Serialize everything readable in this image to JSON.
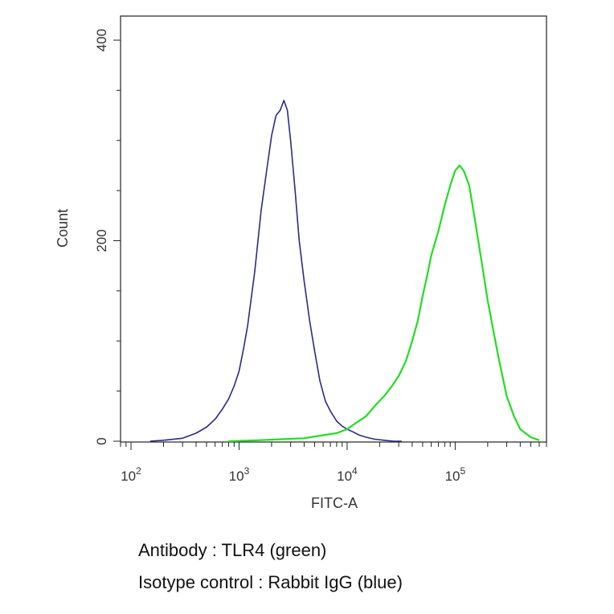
{
  "chart_data": {
    "type": "line",
    "xlabel": "FITC-A",
    "ylabel": "Count",
    "xscale": "log",
    "xlim": [
      80,
      700000
    ],
    "ylim": [
      0,
      400
    ],
    "x_ticks": [
      {
        "value": 100,
        "base": "10",
        "exp": "2"
      },
      {
        "value": 1000,
        "base": "10",
        "exp": "3"
      },
      {
        "value": 10000,
        "base": "10",
        "exp": "4"
      },
      {
        "value": 100000,
        "base": "10",
        "exp": "5"
      }
    ],
    "y_ticks": [
      {
        "value": 0,
        "label": "0"
      },
      {
        "value": 200,
        "label": "200"
      },
      {
        "value": 400,
        "label": "400"
      }
    ],
    "grid": false,
    "legend": "none",
    "series": [
      {
        "name": "Isotype control",
        "color": "#2a2a8a",
        "x": [
          150,
          200,
          300,
          400,
          500,
          600,
          700,
          800,
          900,
          1000,
          1100,
          1200,
          1400,
          1600,
          1800,
          2000,
          2200,
          2400,
          2600,
          2800,
          3000,
          3300,
          3600,
          4000,
          4500,
          5000,
          5600,
          6300,
          7000,
          8000,
          9000,
          10000,
          11500,
          13000,
          15000,
          18000,
          22000,
          27000,
          32000
        ],
        "y": [
          0,
          1,
          3,
          8,
          14,
          22,
          32,
          42,
          55,
          70,
          92,
          115,
          170,
          230,
          270,
          305,
          325,
          330,
          340,
          330,
          300,
          250,
          200,
          160,
          120,
          90,
          60,
          40,
          30,
          20,
          15,
          12,
          9,
          6,
          4,
          2,
          1,
          0,
          0
        ]
      },
      {
        "name": "TLR4",
        "color": "#22dd22",
        "x": [
          800,
          1500,
          2500,
          4000,
          6000,
          8000,
          10000,
          12000,
          15000,
          18000,
          22000,
          26000,
          30000,
          35000,
          40000,
          45000,
          50000,
          55000,
          60000,
          70000,
          80000,
          90000,
          100000,
          110000,
          120000,
          135000,
          150000,
          175000,
          200000,
          250000,
          300000,
          350000,
          400000,
          500000,
          600000
        ],
        "y": [
          0,
          1,
          2,
          3,
          6,
          8,
          12,
          18,
          25,
          35,
          45,
          55,
          65,
          80,
          100,
          120,
          145,
          165,
          185,
          210,
          235,
          255,
          270,
          275,
          270,
          255,
          225,
          180,
          140,
          85,
          45,
          25,
          12,
          4,
          1
        ]
      }
    ]
  },
  "captions": {
    "antibody": "Antibody : TLR4 (green)",
    "isotype": "Isotype control : Rabbit IgG (blue)"
  }
}
